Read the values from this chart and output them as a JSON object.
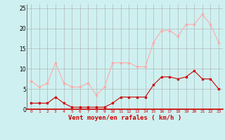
{
  "hours": [
    0,
    1,
    2,
    3,
    4,
    5,
    6,
    7,
    8,
    9,
    10,
    11,
    12,
    13,
    14,
    15,
    16,
    17,
    18,
    19,
    20,
    21,
    22,
    23
  ],
  "wind_avg": [
    1.5,
    1.5,
    1.5,
    3.0,
    1.5,
    0.5,
    0.5,
    0.5,
    0.5,
    0.5,
    1.5,
    3.0,
    3.0,
    3.0,
    3.0,
    6.0,
    8.0,
    8.0,
    7.5,
    8.0,
    9.5,
    7.5,
    7.5,
    5.0
  ],
  "wind_gust": [
    7.0,
    5.5,
    6.5,
    11.5,
    6.5,
    5.5,
    5.5,
    6.5,
    3.5,
    5.5,
    11.5,
    11.5,
    11.5,
    10.5,
    10.5,
    16.5,
    19.5,
    19.5,
    18.0,
    21.0,
    21.0,
    23.5,
    21.0,
    16.5
  ],
  "avg_color": "#cc0000",
  "gust_color": "#ffaaaa",
  "bg_color": "#cff0f0",
  "grid_color": "#aaaaaa",
  "xlabel": "Vent moyen/en rafales ( km/h )",
  "xlabel_color": "#cc0000",
  "ytick_color": "#000000",
  "xtick_color": "#cc0000",
  "ylim": [
    0,
    26
  ],
  "yticks": [
    0,
    5,
    10,
    15,
    20,
    25
  ],
  "markersize": 2.0,
  "linewidth": 0.8
}
